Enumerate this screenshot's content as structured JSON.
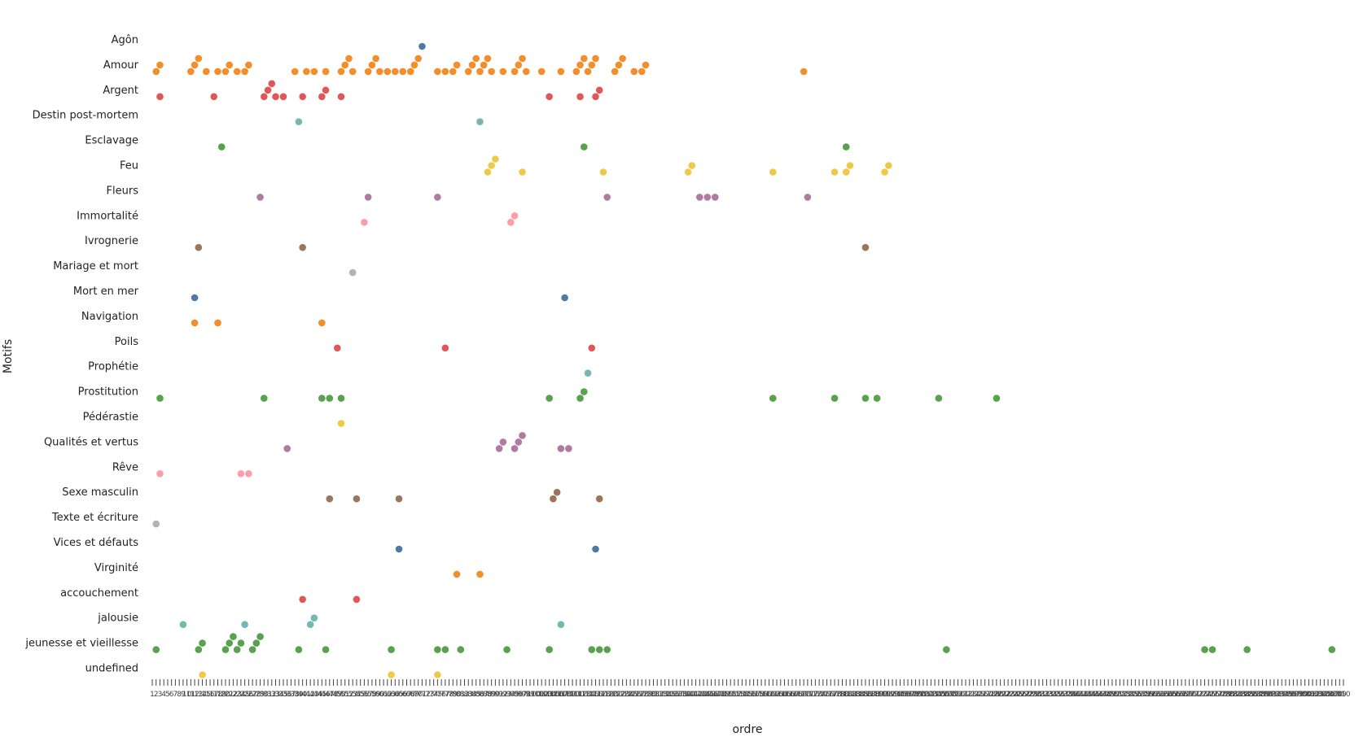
{
  "chart_data": {
    "type": "scatter",
    "title": "",
    "xlabel": "ordre",
    "ylabel": "Motifs",
    "x_range": [
      1,
      310
    ],
    "x_tick_count": 310,
    "grid": false,
    "legend": "none",
    "categories": [
      "Agôn",
      "Amour",
      "Argent",
      "Destin post-mortem",
      "Esclavage",
      "Feu",
      "Fleurs",
      "Immortalité",
      "Ivrognerie",
      "Mariage et mort",
      "Mort en mer",
      "Navigation",
      "Poils",
      "Prophétie",
      "Prostitution",
      "Pédérastie",
      "Qualités et vertus",
      "Rêve",
      "Sexe masculin",
      "Texte et écriture",
      "Vices et défauts",
      "Virginité",
      "accouchement",
      "jalousie",
      "jeunesse et vieillesse",
      "undefined"
    ],
    "colors": {
      "Agôn": "#4e79a7",
      "Amour": "#f28e2b",
      "Argent": "#e15759",
      "Destin post-mortem": "#76b7b2",
      "Esclavage": "#59a14f",
      "Feu": "#edc948",
      "Fleurs": "#b07aa1",
      "Immortalité": "#ff9da7",
      "Ivrognerie": "#9c755f",
      "Mariage et mort": "#bab0ac",
      "Mort en mer": "#4e79a7",
      "Navigation": "#f28e2b",
      "Poils": "#e15759",
      "Prophétie": "#76b7b2",
      "Prostitution": "#59a14f",
      "Pédérastie": "#edc948",
      "Qualités et vertus": "#b07aa1",
      "Rêve": "#ff9da7",
      "Sexe masculin": "#9c755f",
      "Texte et écriture": "#bab0ac",
      "Vices et défauts": "#4e79a7",
      "Virginité": "#f28e2b",
      "accouchement": "#e15759",
      "jalousie": "#76b7b2",
      "jeunesse et vieillesse": "#59a14f",
      "undefined": "#edc948"
    },
    "points": [
      {
        "category": "Agôn",
        "x": 71
      },
      {
        "category": "Amour",
        "x": 2
      },
      {
        "category": "Amour",
        "x": 3
      },
      {
        "category": "Amour",
        "x": 11
      },
      {
        "category": "Amour",
        "x": 12
      },
      {
        "category": "Amour",
        "x": 13
      },
      {
        "category": "Amour",
        "x": 15
      },
      {
        "category": "Amour",
        "x": 18
      },
      {
        "category": "Amour",
        "x": 20
      },
      {
        "category": "Amour",
        "x": 21
      },
      {
        "category": "Amour",
        "x": 23
      },
      {
        "category": "Amour",
        "x": 25
      },
      {
        "category": "Amour",
        "x": 26
      },
      {
        "category": "Amour",
        "x": 38
      },
      {
        "category": "Amour",
        "x": 41
      },
      {
        "category": "Amour",
        "x": 43
      },
      {
        "category": "Amour",
        "x": 46
      },
      {
        "category": "Amour",
        "x": 50
      },
      {
        "category": "Amour",
        "x": 51
      },
      {
        "category": "Amour",
        "x": 52
      },
      {
        "category": "Amour",
        "x": 53
      },
      {
        "category": "Amour",
        "x": 57
      },
      {
        "category": "Amour",
        "x": 58
      },
      {
        "category": "Amour",
        "x": 59
      },
      {
        "category": "Amour",
        "x": 60
      },
      {
        "category": "Amour",
        "x": 62
      },
      {
        "category": "Amour",
        "x": 64
      },
      {
        "category": "Amour",
        "x": 66
      },
      {
        "category": "Amour",
        "x": 68
      },
      {
        "category": "Amour",
        "x": 69
      },
      {
        "category": "Amour",
        "x": 70
      },
      {
        "category": "Amour",
        "x": 75
      },
      {
        "category": "Amour",
        "x": 77
      },
      {
        "category": "Amour",
        "x": 79
      },
      {
        "category": "Amour",
        "x": 80
      },
      {
        "category": "Amour",
        "x": 83
      },
      {
        "category": "Amour",
        "x": 84
      },
      {
        "category": "Amour",
        "x": 85
      },
      {
        "category": "Amour",
        "x": 86
      },
      {
        "category": "Amour",
        "x": 87
      },
      {
        "category": "Amour",
        "x": 88
      },
      {
        "category": "Amour",
        "x": 89
      },
      {
        "category": "Amour",
        "x": 92
      },
      {
        "category": "Amour",
        "x": 95
      },
      {
        "category": "Amour",
        "x": 96
      },
      {
        "category": "Amour",
        "x": 97
      },
      {
        "category": "Amour",
        "x": 98
      },
      {
        "category": "Amour",
        "x": 102
      },
      {
        "category": "Amour",
        "x": 107
      },
      {
        "category": "Amour",
        "x": 111
      },
      {
        "category": "Amour",
        "x": 112
      },
      {
        "category": "Amour",
        "x": 113
      },
      {
        "category": "Amour",
        "x": 114
      },
      {
        "category": "Amour",
        "x": 115
      },
      {
        "category": "Amour",
        "x": 116
      },
      {
        "category": "Amour",
        "x": 121
      },
      {
        "category": "Amour",
        "x": 122
      },
      {
        "category": "Amour",
        "x": 123
      },
      {
        "category": "Amour",
        "x": 126
      },
      {
        "category": "Amour",
        "x": 128
      },
      {
        "category": "Amour",
        "x": 129
      },
      {
        "category": "Amour",
        "x": 170
      },
      {
        "category": "Argent",
        "x": 3
      },
      {
        "category": "Argent",
        "x": 17
      },
      {
        "category": "Argent",
        "x": 30
      },
      {
        "category": "Argent",
        "x": 31
      },
      {
        "category": "Argent",
        "x": 32
      },
      {
        "category": "Argent",
        "x": 33
      },
      {
        "category": "Argent",
        "x": 35
      },
      {
        "category": "Argent",
        "x": 40
      },
      {
        "category": "Argent",
        "x": 45
      },
      {
        "category": "Argent",
        "x": 46
      },
      {
        "category": "Argent",
        "x": 50
      },
      {
        "category": "Argent",
        "x": 104
      },
      {
        "category": "Argent",
        "x": 112
      },
      {
        "category": "Argent",
        "x": 116
      },
      {
        "category": "Argent",
        "x": 117
      },
      {
        "category": "Destin post-mortem",
        "x": 39
      },
      {
        "category": "Destin post-mortem",
        "x": 86
      },
      {
        "category": "Esclavage",
        "x": 19
      },
      {
        "category": "Esclavage",
        "x": 113
      },
      {
        "category": "Esclavage",
        "x": 181
      },
      {
        "category": "Feu",
        "x": 88
      },
      {
        "category": "Feu",
        "x": 89
      },
      {
        "category": "Feu",
        "x": 90
      },
      {
        "category": "Feu",
        "x": 97
      },
      {
        "category": "Feu",
        "x": 118
      },
      {
        "category": "Feu",
        "x": 140
      },
      {
        "category": "Feu",
        "x": 141
      },
      {
        "category": "Feu",
        "x": 162
      },
      {
        "category": "Feu",
        "x": 178
      },
      {
        "category": "Feu",
        "x": 181
      },
      {
        "category": "Feu",
        "x": 182
      },
      {
        "category": "Feu",
        "x": 191
      },
      {
        "category": "Feu",
        "x": 192
      },
      {
        "category": "Fleurs",
        "x": 29
      },
      {
        "category": "Fleurs",
        "x": 57
      },
      {
        "category": "Fleurs",
        "x": 75
      },
      {
        "category": "Fleurs",
        "x": 119
      },
      {
        "category": "Fleurs",
        "x": 143
      },
      {
        "category": "Fleurs",
        "x": 145
      },
      {
        "category": "Fleurs",
        "x": 147
      },
      {
        "category": "Fleurs",
        "x": 171
      },
      {
        "category": "Immortalité",
        "x": 56
      },
      {
        "category": "Immortalité",
        "x": 94
      },
      {
        "category": "Immortalité",
        "x": 95
      },
      {
        "category": "Ivrognerie",
        "x": 13
      },
      {
        "category": "Ivrognerie",
        "x": 40
      },
      {
        "category": "Ivrognerie",
        "x": 186
      },
      {
        "category": "Mariage et mort",
        "x": 53
      },
      {
        "category": "Mort en mer",
        "x": 12
      },
      {
        "category": "Mort en mer",
        "x": 108
      },
      {
        "category": "Navigation",
        "x": 12
      },
      {
        "category": "Navigation",
        "x": 18
      },
      {
        "category": "Navigation",
        "x": 45
      },
      {
        "category": "Poils",
        "x": 49
      },
      {
        "category": "Poils",
        "x": 77
      },
      {
        "category": "Poils",
        "x": 115
      },
      {
        "category": "Prophétie",
        "x": 114
      },
      {
        "category": "Prostitution",
        "x": 3
      },
      {
        "category": "Prostitution",
        "x": 30
      },
      {
        "category": "Prostitution",
        "x": 45
      },
      {
        "category": "Prostitution",
        "x": 47
      },
      {
        "category": "Prostitution",
        "x": 50
      },
      {
        "category": "Prostitution",
        "x": 104
      },
      {
        "category": "Prostitution",
        "x": 112
      },
      {
        "category": "Prostitution",
        "x": 113
      },
      {
        "category": "Prostitution",
        "x": 162
      },
      {
        "category": "Prostitution",
        "x": 178
      },
      {
        "category": "Prostitution",
        "x": 186
      },
      {
        "category": "Prostitution",
        "x": 189
      },
      {
        "category": "Prostitution",
        "x": 205
      },
      {
        "category": "Prostitution",
        "x": 220
      },
      {
        "category": "Pédérastie",
        "x": 50
      },
      {
        "category": "Qualités et vertus",
        "x": 36
      },
      {
        "category": "Qualités et vertus",
        "x": 91
      },
      {
        "category": "Qualités et vertus",
        "x": 92
      },
      {
        "category": "Qualités et vertus",
        "x": 95
      },
      {
        "category": "Qualités et vertus",
        "x": 96
      },
      {
        "category": "Qualités et vertus",
        "x": 97
      },
      {
        "category": "Qualités et vertus",
        "x": 107
      },
      {
        "category": "Qualités et vertus",
        "x": 109
      },
      {
        "category": "Rêve",
        "x": 3
      },
      {
        "category": "Rêve",
        "x": 24
      },
      {
        "category": "Rêve",
        "x": 26
      },
      {
        "category": "Sexe masculin",
        "x": 47
      },
      {
        "category": "Sexe masculin",
        "x": 54
      },
      {
        "category": "Sexe masculin",
        "x": 65
      },
      {
        "category": "Sexe masculin",
        "x": 105
      },
      {
        "category": "Sexe masculin",
        "x": 106
      },
      {
        "category": "Sexe masculin",
        "x": 117
      },
      {
        "category": "Texte et écriture",
        "x": 2
      },
      {
        "category": "Vices et défauts",
        "x": 65
      },
      {
        "category": "Vices et défauts",
        "x": 116
      },
      {
        "category": "Virginité",
        "x": 80
      },
      {
        "category": "Virginité",
        "x": 86
      },
      {
        "category": "accouchement",
        "x": 40
      },
      {
        "category": "accouchement",
        "x": 54
      },
      {
        "category": "jalousie",
        "x": 9
      },
      {
        "category": "jalousie",
        "x": 25
      },
      {
        "category": "jalousie",
        "x": 42
      },
      {
        "category": "jalousie",
        "x": 43
      },
      {
        "category": "jalousie",
        "x": 107
      },
      {
        "category": "jeunesse et vieillesse",
        "x": 2
      },
      {
        "category": "jeunesse et vieillesse",
        "x": 13
      },
      {
        "category": "jeunesse et vieillesse",
        "x": 14
      },
      {
        "category": "jeunesse et vieillesse",
        "x": 20
      },
      {
        "category": "jeunesse et vieillesse",
        "x": 21
      },
      {
        "category": "jeunesse et vieillesse",
        "x": 22
      },
      {
        "category": "jeunesse et vieillesse",
        "x": 23
      },
      {
        "category": "jeunesse et vieillesse",
        "x": 24
      },
      {
        "category": "jeunesse et vieillesse",
        "x": 27
      },
      {
        "category": "jeunesse et vieillesse",
        "x": 28
      },
      {
        "category": "jeunesse et vieillesse",
        "x": 29
      },
      {
        "category": "jeunesse et vieillesse",
        "x": 39
      },
      {
        "category": "jeunesse et vieillesse",
        "x": 46
      },
      {
        "category": "jeunesse et vieillesse",
        "x": 63
      },
      {
        "category": "jeunesse et vieillesse",
        "x": 75
      },
      {
        "category": "jeunesse et vieillesse",
        "x": 77
      },
      {
        "category": "jeunesse et vieillesse",
        "x": 81
      },
      {
        "category": "jeunesse et vieillesse",
        "x": 93
      },
      {
        "category": "jeunesse et vieillesse",
        "x": 104
      },
      {
        "category": "jeunesse et vieillesse",
        "x": 115
      },
      {
        "category": "jeunesse et vieillesse",
        "x": 117
      },
      {
        "category": "jeunesse et vieillesse",
        "x": 119
      },
      {
        "category": "jeunesse et vieillesse",
        "x": 207
      },
      {
        "category": "jeunesse et vieillesse",
        "x": 274
      },
      {
        "category": "jeunesse et vieillesse",
        "x": 276
      },
      {
        "category": "jeunesse et vieillesse",
        "x": 285
      },
      {
        "category": "jeunesse et vieillesse",
        "x": 307
      },
      {
        "category": "undefined",
        "x": 14
      },
      {
        "category": "undefined",
        "x": 63
      },
      {
        "category": "undefined",
        "x": 75
      }
    ]
  }
}
